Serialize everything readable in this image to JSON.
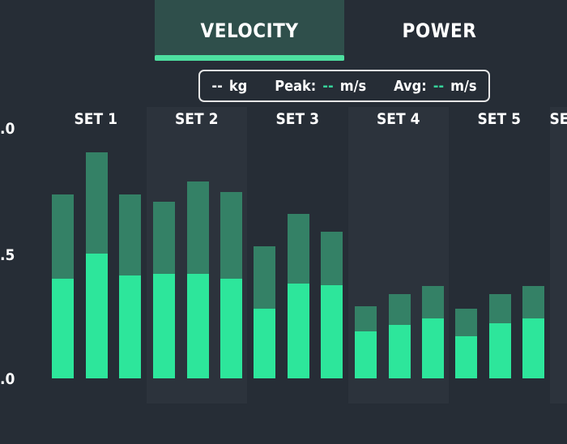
{
  "tabs": [
    {
      "label": "VELOCITY",
      "active": true
    },
    {
      "label": "POWER",
      "active": false
    }
  ],
  "summary": {
    "weight_value": "--",
    "weight_unit": "kg",
    "peak_label": "Peak:",
    "peak_value": "--",
    "peak_unit": "m/s",
    "avg_label": "Avg:",
    "avg_value": "--",
    "avg_unit": "m/s"
  },
  "y_axis": {
    "tick_labels": [
      ".0",
      ".5",
      ".0"
    ]
  },
  "sets": [
    {
      "label": "SET 1",
      "shaded": false
    },
    {
      "label": "SET 2",
      "shaded": true
    },
    {
      "label": "SET 3",
      "shaded": false
    },
    {
      "label": "SET 4",
      "shaded": true
    },
    {
      "label": "SET 5",
      "shaded": false
    },
    {
      "label": "SET",
      "shaded": true
    }
  ],
  "colors": {
    "peak": "#348166",
    "avg": "#2de69b",
    "accent": "#4de0a0"
  },
  "chart_data": {
    "type": "bar",
    "ylim": [
      0,
      1.0
    ],
    "series": [
      {
        "name": "Peak",
        "values": [
          0.74,
          0.91,
          0.74,
          0.71,
          0.79,
          0.75,
          0.53,
          0.66,
          0.59,
          0.29,
          0.34,
          0.37,
          0.28,
          0.34,
          0.37
        ]
      },
      {
        "name": "Avg",
        "values": [
          0.4,
          0.5,
          0.415,
          0.42,
          0.42,
          0.4,
          0.28,
          0.38,
          0.375,
          0.19,
          0.215,
          0.24,
          0.17,
          0.22,
          0.24
        ]
      }
    ],
    "set_index": [
      0,
      0,
      0,
      1,
      1,
      1,
      2,
      2,
      2,
      3,
      3,
      3,
      4,
      4,
      4
    ]
  }
}
